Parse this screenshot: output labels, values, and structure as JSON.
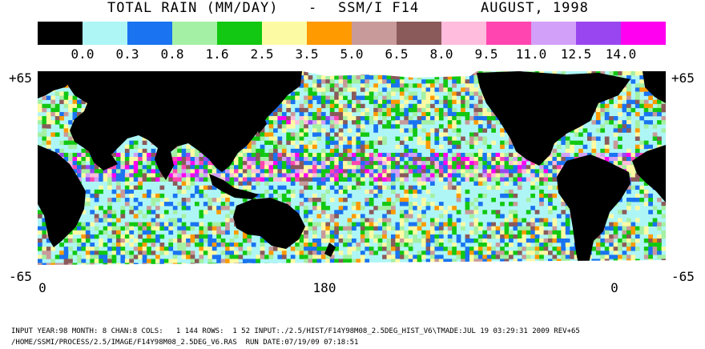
{
  "title": {
    "left": "TOTAL RAIN (MM/DAY)",
    "dash": "-",
    "sensor": "SSM/I F14",
    "date": "AUGUST, 1998"
  },
  "legend": {
    "colors": [
      "#000000",
      "#aef6f6",
      "#1a73f0",
      "#a4f0a4",
      "#12c812",
      "#fdfaa4",
      "#ff9a00",
      "#c89a9a",
      "#8a5a5a",
      "#ffbcdc",
      "#ff46b0",
      "#d2a0f8",
      "#9a46f0",
      "#ff00f0"
    ],
    "labels": [
      "0.0",
      "0.3",
      "0.8",
      "1.6",
      "2.5",
      "3.5",
      "5.0",
      "6.5",
      "8.0",
      "9.5",
      "11.0",
      "12.5",
      "14.0"
    ]
  },
  "map": {
    "lat_top_left": "+65",
    "lat_top_right": "+65",
    "lat_bottom_left": "-65",
    "lat_bottom_right": "-65",
    "lon_labels": [
      "0",
      "180",
      "0"
    ]
  },
  "footer": {
    "line1": "INPUT YEAR:98 MONTH: 8 CHAN:8 COLS:   1 144 ROWS:  1 52 INPUT:./2.5/HIST/F14Y98M08_2.5DEG_HIST_V6\\TMADE:JUL 19 03:29:31 2009 REV+65",
    "line2": "/HOME/SSMI/PROCESS/2.5/IMAGE/F14Y98M08_2.5DEG_V6.RAS  RUN DATE:07/19/09 07:18:51"
  }
}
